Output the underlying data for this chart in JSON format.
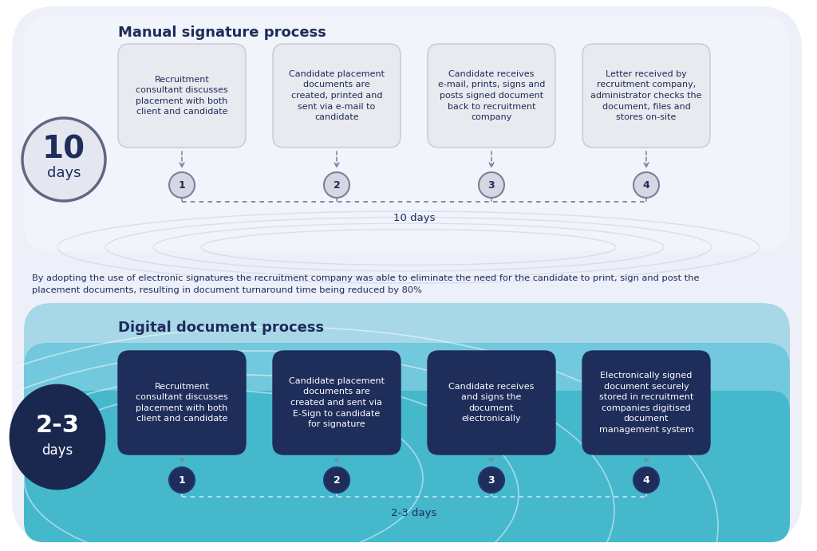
{
  "title_manual": "Manual signature process",
  "title_digital": "Digital document process",
  "manual_box_color": "#e8eaef",
  "manual_box_edge": "#c5c8d5",
  "digital_box_color": "#1e2d5a",
  "digital_box_edge": "#1e2d5a",
  "manual_text_color": "#1e2d5a",
  "digital_text_color": "#ffffff",
  "circle_manual_bg": "#d5d8e2",
  "circle_manual_edge": "#7a8099",
  "circle_digital_bg": "#1e2d5a",
  "circle_digital_edge": "#253570",
  "circle_manual_num_color": "#1e2d5a",
  "circle_digital_num_color": "#ffffff",
  "days_manual_big": "10",
  "days_manual_label": "days",
  "days_digital_big": "2-3",
  "days_digital_label": "days",
  "manual_steps": [
    "Recruitment\nconsultant discusses\nplacement with both\nclient and candidate",
    "Candidate placement\ndocuments are\ncreated, printed and\nsent via e-mail to\ncandidate",
    "Candidate receives\ne-mail, prints, signs and\nposts signed document\nback to recruitment\ncompany",
    "Letter received by\nrecruitment company,\nadministrator checks the\ndocument, files and\nstores on-site"
  ],
  "digital_steps": [
    "Recruitment\nconsultant discusses\nplacement with both\nclient and candidate",
    "Candidate placement\ndocuments are\ncreated and sent via\nE-Sign to candidate\nfor signature",
    "Candidate receives\nand signs the\ndocument\nelectronically",
    "Electronically signed\ndocument securely\nstored in recruitment\ncompanies digitised\ndocument\nmanagement system"
  ],
  "middle_text": "By adopting the use of electronic signatures the recruitment company was able to eliminate the need for the candidate to print, sign and post the\nplacement documents, resulting in document turnaround time being reduced by 80%",
  "timeline_manual_label": "10 days",
  "timeline_digital_label": "2-3 days",
  "dot_color_manual": "#7a8099",
  "dot_color_digital": "#ffffff",
  "upper_bg": "#edf0f8",
  "lower_bg_outer": "#b8dff0",
  "lower_bg_mid": "#87cfe0",
  "lower_bg_inner": "#55bbd0",
  "ellipse_color_upper": "#d0d5e8",
  "ellipse_color_lower": "#ffffff"
}
